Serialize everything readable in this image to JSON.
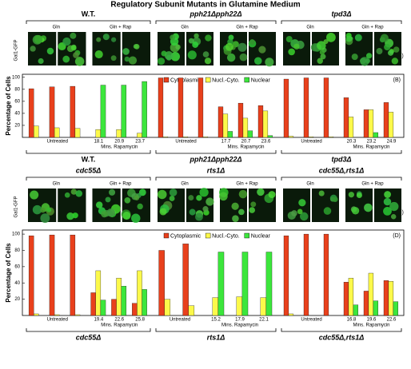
{
  "title": "Regulatory Subunit Mutants in Glutamine Medium",
  "panels": [
    {
      "label": "(A)",
      "ylabel": "Gal1-GFP",
      "strains": [
        "W.T.",
        "pph21Δpph22Δ",
        "tpd3Δ"
      ],
      "conditions": [
        "Gln",
        "Gln + Rap"
      ]
    },
    {
      "label": "(C)",
      "ylabel": "Gal1-GFP",
      "strains": [
        "cdc55Δ",
        "rts1Δ",
        "cdc55Δ,rts1Δ"
      ],
      "conditions": [
        "Gln",
        "Gln + Rap"
      ]
    }
  ],
  "chart_data": [
    {
      "type": "bar",
      "label": "(B)",
      "ylabel": "Percentage of Cells",
      "ylim": [
        0,
        105
      ],
      "yticks": [
        20,
        40,
        60,
        80,
        100
      ],
      "untreated_label": "Untreated",
      "rapamycin_label": "Mins. Rapamycin",
      "series": [
        {
          "name": "Cytoplasmic",
          "color": "#e8401c"
        },
        {
          "name": "Nucl.-Cyto.",
          "color": "#fcf94a"
        },
        {
          "name": "Nuclear",
          "color": "#3ce63c"
        }
      ],
      "groups": [
        {
          "label": "W.T.",
          "categories": [
            null,
            null,
            null,
            "18.1",
            "20.9",
            "23.7"
          ],
          "values": [
            [
              81,
              19,
              0
            ],
            [
              84,
              16,
              0
            ],
            [
              85,
              15,
              0
            ],
            [
              0,
              13,
              87
            ],
            [
              0,
              13,
              87
            ],
            [
              0,
              7,
              93
            ]
          ]
        },
        {
          "label": "pph21Δpph22Δ",
          "categories": [
            null,
            null,
            null,
            "17.7",
            "20.7",
            "23.6"
          ],
          "values": [
            [
              99,
              1,
              0
            ],
            [
              99,
              1,
              0
            ],
            [
              99,
              1,
              0
            ],
            [
              51,
              39,
              10
            ],
            [
              57,
              32,
              11
            ],
            [
              53,
              44,
              3
            ]
          ]
        },
        {
          "label": "tpd3Δ",
          "categories": [
            null,
            null,
            null,
            "20.3",
            "23.2",
            "24.9"
          ],
          "values": [
            [
              97,
              2,
              0
            ],
            [
              99,
              1,
              0
            ],
            [
              99,
              1,
              0
            ],
            [
              66,
              34,
              0
            ],
            [
              46,
              46,
              8
            ],
            [
              58,
              42,
              0
            ]
          ]
        }
      ]
    },
    {
      "type": "bar",
      "label": "(D)",
      "ylabel": "Percentage of Cells",
      "ylim": [
        0,
        105
      ],
      "yticks": [
        20,
        40,
        60,
        80,
        100
      ],
      "untreated_label": "Untreated",
      "rapamycin_label": "Mins. Rapamycin",
      "series": [
        {
          "name": "Cytoplasmic",
          "color": "#e8401c"
        },
        {
          "name": "Nucl.-Cyto.",
          "color": "#fcf94a"
        },
        {
          "name": "Nuclear",
          "color": "#3ce63c"
        }
      ],
      "groups": [
        {
          "label": "cdc55Δ",
          "categories": [
            null,
            null,
            null,
            "19.4",
            "22.6",
            "25.8"
          ],
          "values": [
            [
              98,
              2,
              0
            ],
            [
              99,
              1,
              0
            ],
            [
              99,
              1,
              0
            ],
            [
              28,
              55,
              19
            ],
            [
              20,
              46,
              36
            ],
            [
              15,
              55,
              32
            ]
          ]
        },
        {
          "label": "rts1Δ",
          "categories": [
            null,
            null,
            "15.2",
            "17.9",
            "22.1"
          ],
          "values": [
            [
              80,
              20,
              0
            ],
            [
              88,
              12,
              0
            ],
            [
              0,
              22,
              78
            ],
            [
              0,
              23,
              78
            ],
            [
              0,
              22,
              78
            ]
          ]
        },
        {
          "label": "cdc55Δ,rts1Δ",
          "categories": [
            null,
            null,
            null,
            "16.8",
            "19.6",
            "22.6"
          ],
          "values": [
            [
              98,
              2,
              0
            ],
            [
              100,
              0,
              0
            ],
            [
              100,
              0,
              0
            ],
            [
              41,
              46,
              13
            ],
            [
              30,
              52,
              18
            ],
            [
              43,
              42,
              17
            ]
          ]
        }
      ]
    }
  ]
}
